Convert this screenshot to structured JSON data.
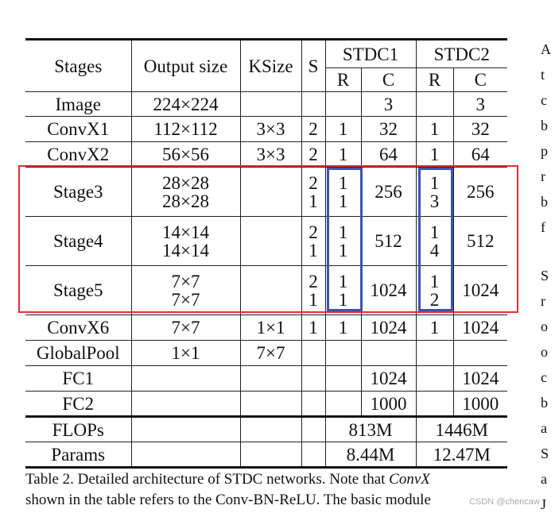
{
  "table": {
    "headers": {
      "stages": "Stages",
      "output_size": "Output size",
      "ksize": "KSize",
      "s": "S",
      "stdc1": "STDC1",
      "stdc2": "STDC2",
      "r": "R",
      "c": "C"
    },
    "rows": [
      {
        "stage": "Image",
        "output": "224×224",
        "ksize": "",
        "s": "",
        "r1": "",
        "c1": "3",
        "r2": "",
        "c2": "3"
      },
      {
        "stage": "ConvX1",
        "output": "112×112",
        "ksize": "3×3",
        "s": "2",
        "r1": "1",
        "c1": "32",
        "r2": "1",
        "c2": "32"
      },
      {
        "stage": "ConvX2",
        "output": "56×56",
        "ksize": "3×3",
        "s": "2",
        "r1": "1",
        "c1": "64",
        "r2": "1",
        "c2": "64"
      },
      {
        "stage": "Stage3",
        "output": [
          "28×28",
          "28×28"
        ],
        "ksize": "",
        "s": [
          "2",
          "1"
        ],
        "r1": [
          "1",
          "1"
        ],
        "c1": "256",
        "r2": [
          "1",
          "3"
        ],
        "c2": "256"
      },
      {
        "stage": "Stage4",
        "output": [
          "14×14",
          "14×14"
        ],
        "ksize": "",
        "s": [
          "2",
          "1"
        ],
        "r1": [
          "1",
          "1"
        ],
        "c1": "512",
        "r2": [
          "1",
          "4"
        ],
        "c2": "512"
      },
      {
        "stage": "Stage5",
        "output": [
          "7×7",
          "7×7"
        ],
        "ksize": "",
        "s": [
          "2",
          "1"
        ],
        "r1": [
          "1",
          "1"
        ],
        "c1": "1024",
        "r2": [
          "1",
          "2"
        ],
        "c2": "1024"
      },
      {
        "stage": "ConvX6",
        "output": "7×7",
        "ksize": "1×1",
        "s": "1",
        "r1": "1",
        "c1": "1024",
        "r2": "1",
        "c2": "1024"
      },
      {
        "stage": "GlobalPool",
        "output": "1×1",
        "ksize": "7×7",
        "s": "",
        "r1": "",
        "c1": "",
        "r2": "",
        "c2": ""
      },
      {
        "stage": "FC1",
        "output": "",
        "ksize": "",
        "s": "",
        "r1": "",
        "c1": "1024",
        "r2": "",
        "c2": "1024"
      },
      {
        "stage": "FC2",
        "output": "",
        "ksize": "",
        "s": "",
        "r1": "",
        "c1": "1000",
        "r2": "",
        "c2": "1000"
      }
    ],
    "flops": {
      "label": "FLOPs",
      "stdc1": "813M",
      "stdc2": "1446M"
    },
    "params": {
      "label": "Params",
      "stdc1": "8.44M",
      "stdc2": "12.47M"
    }
  },
  "caption": {
    "line1_a": "Table 2. Detailed architecture of STDC networks.  Note that ",
    "line1_em": "ConvX",
    "line2": "shown in the table refers to the Conv-BN-ReLU. The basic module"
  },
  "right_margin_letters": [
    "A",
    "t",
    "c",
    "b",
    "p",
    "r",
    "b",
    "f",
    "S",
    "r",
    "o",
    "o",
    "c",
    "b",
    "a",
    "S",
    "a",
    "J"
  ],
  "watermark": "CSDN @chencaw",
  "highlight_colors": {
    "red_box": "#e03030",
    "blue_box": "#3955b0"
  }
}
